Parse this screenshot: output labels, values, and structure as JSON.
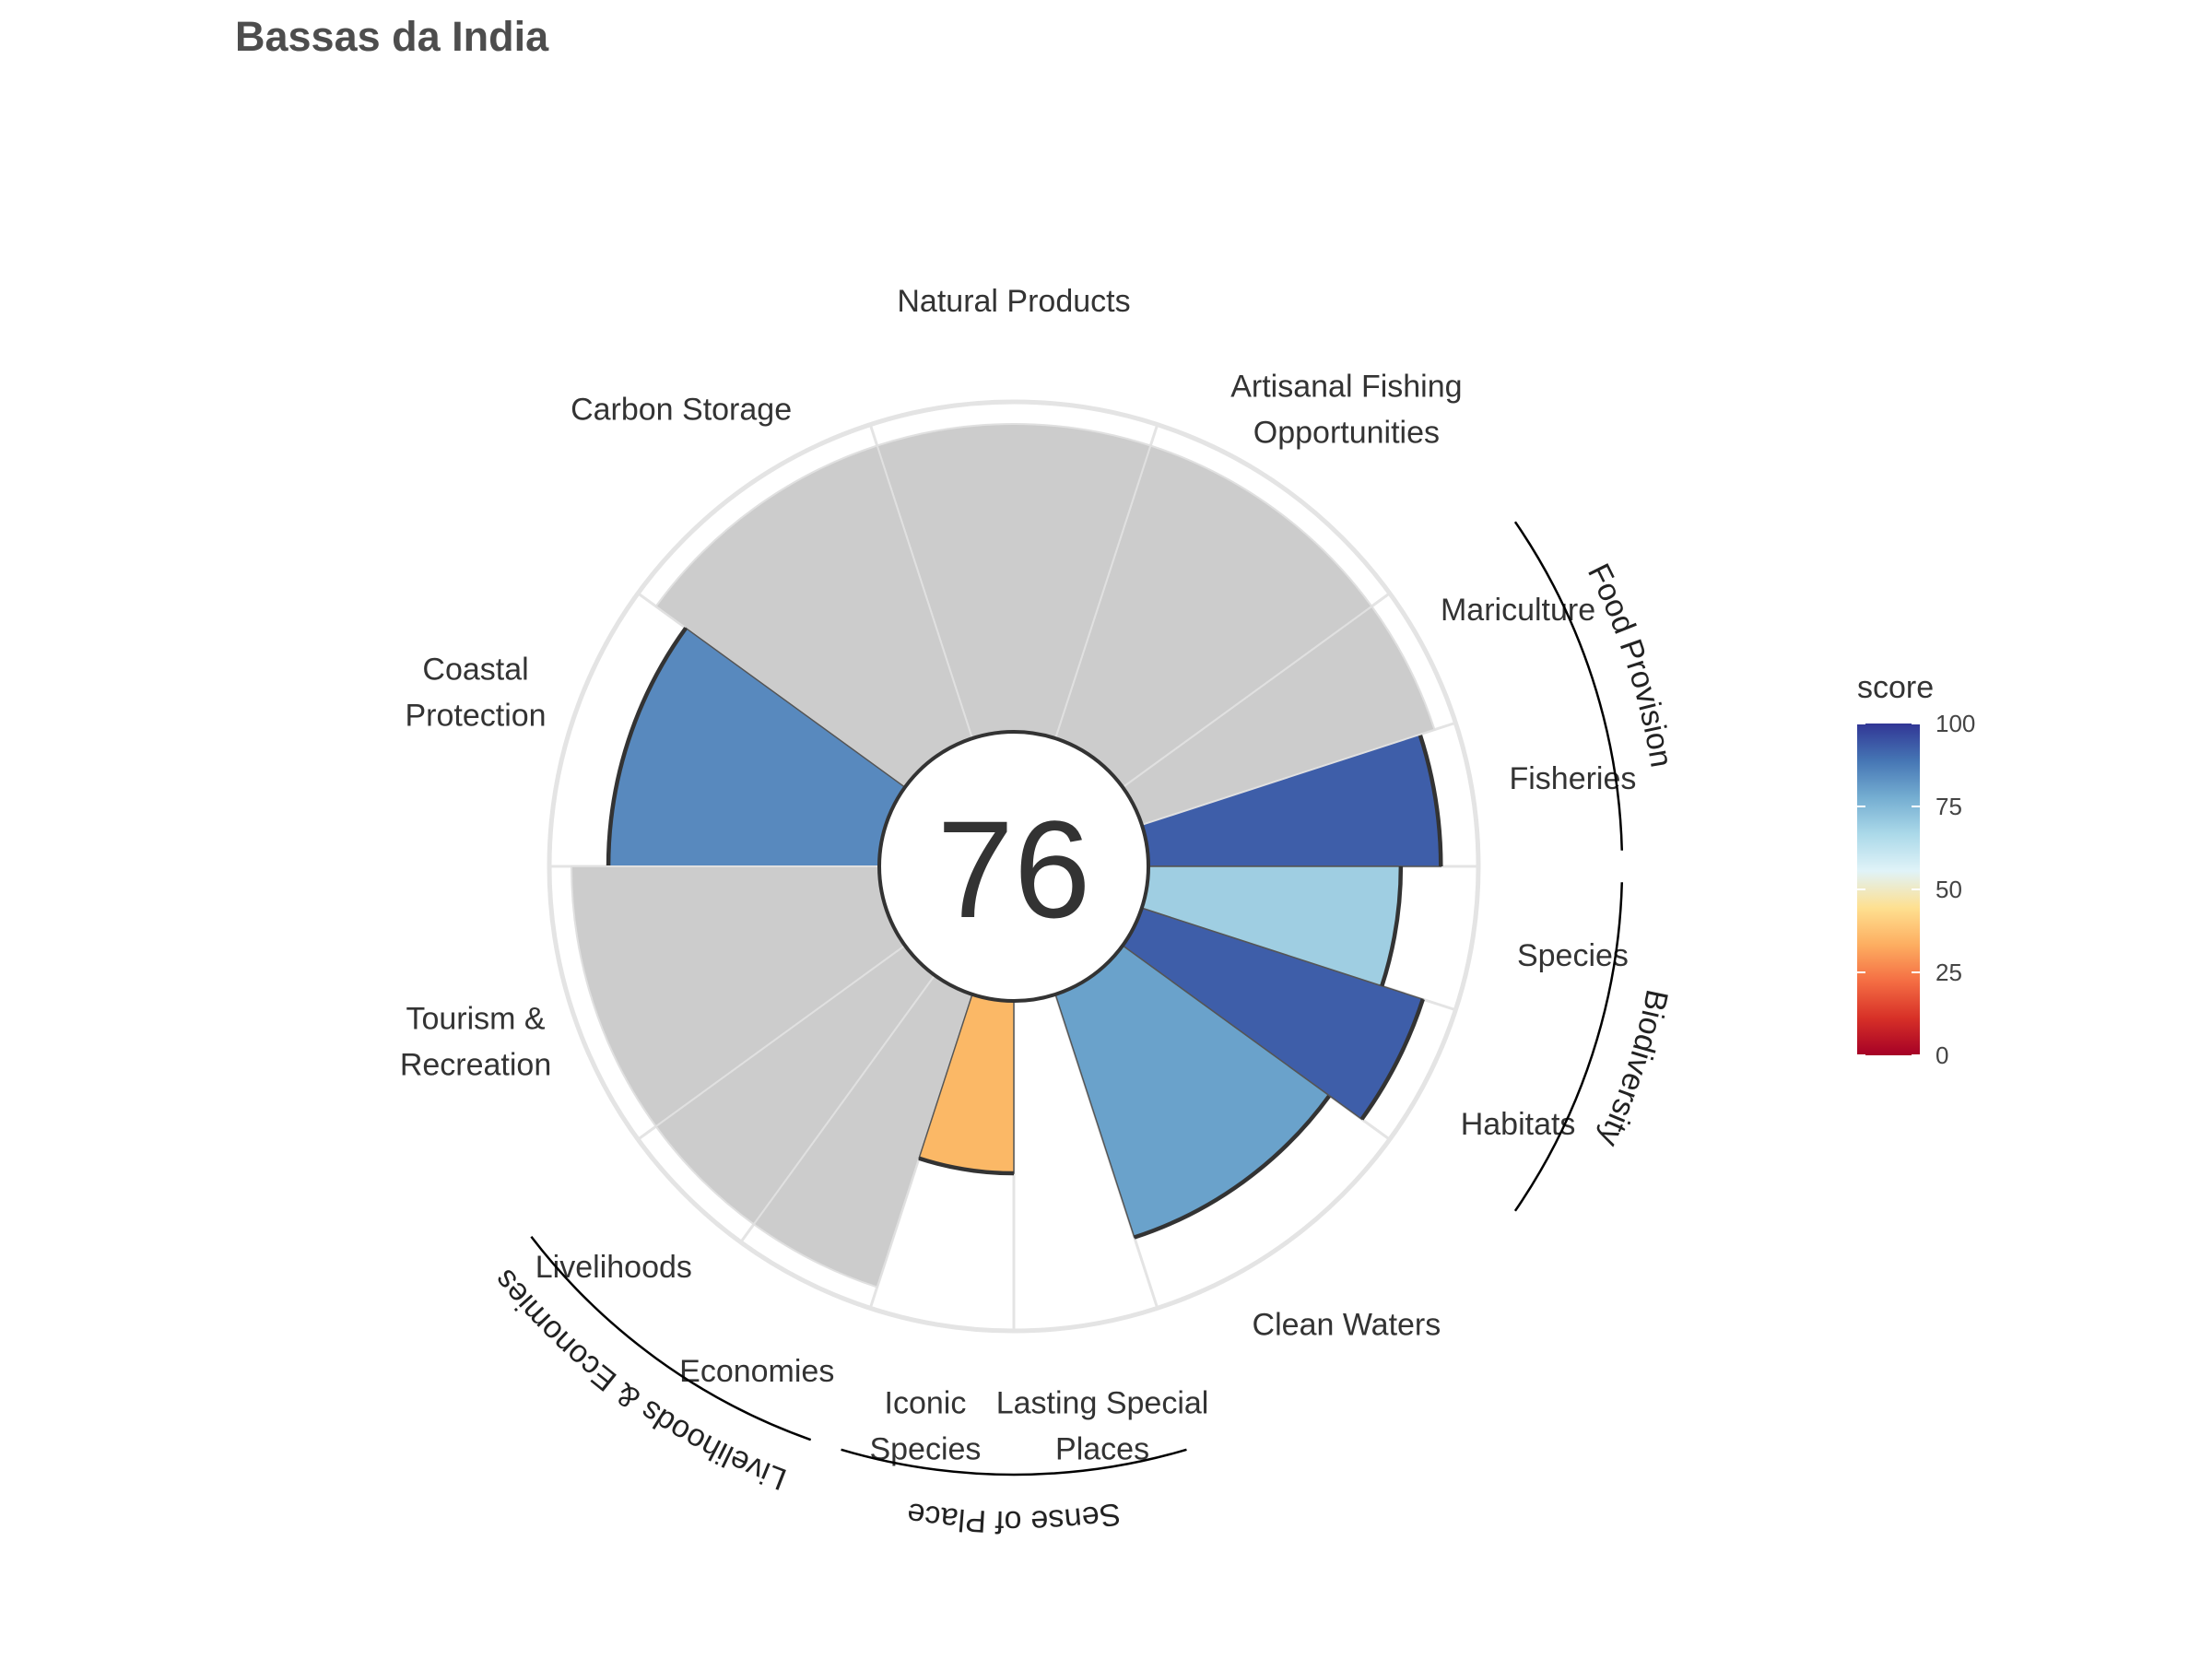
{
  "chart_data": {
    "type": "polar-bar",
    "title": "Bassas da India",
    "center_score": "76",
    "ylim": [
      0,
      100
    ],
    "petals": [
      {
        "id": "fisheries",
        "label": [
          "Fisheries"
        ],
        "score": 95,
        "weight": 1,
        "has_score": true,
        "color": "#3e5ea9"
      },
      {
        "id": "mariculture",
        "label": [
          "Mariculture"
        ],
        "score": null,
        "weight": 1,
        "has_score": false,
        "color": "#cccccc"
      },
      {
        "id": "artisanal-fishing",
        "label": [
          "Artisanal Fishing",
          "Opportunities"
        ],
        "score": null,
        "weight": 2,
        "has_score": false,
        "color": "#cccccc"
      },
      {
        "id": "natural-products",
        "label": [
          "Natural Products"
        ],
        "score": null,
        "weight": 2,
        "has_score": false,
        "color": "#cccccc"
      },
      {
        "id": "carbon-storage",
        "label": [
          "Carbon Storage"
        ],
        "score": null,
        "weight": 2,
        "has_score": false,
        "color": "#cccccc"
      },
      {
        "id": "coastal-protection",
        "label": [
          "Coastal",
          "Protection"
        ],
        "score": 88,
        "weight": 2,
        "has_score": true,
        "color": "#5889be"
      },
      {
        "id": "tourism-recreation",
        "label": [
          "Tourism &",
          "Recreation"
        ],
        "score": null,
        "weight": 2,
        "has_score": false,
        "color": "#cccccc"
      },
      {
        "id": "livelihoods",
        "label": [
          "Livelihoods"
        ],
        "score": null,
        "weight": 1,
        "has_score": false,
        "color": "#cccccc"
      },
      {
        "id": "economies",
        "label": [
          "Economies"
        ],
        "score": null,
        "weight": 1,
        "has_score": false,
        "color": "#cccccc"
      },
      {
        "id": "iconic-species",
        "label": [
          "Iconic",
          "Species"
        ],
        "score": 56,
        "weight": 1,
        "has_score": true,
        "color": "#fbb866"
      },
      {
        "id": "lasting-special-places",
        "label": [
          "Lasting Special",
          "Places"
        ],
        "score": 0,
        "weight": 1,
        "has_score": true,
        "color": "#ffffff"
      },
      {
        "id": "clean-waters",
        "label": [
          "Clean Waters"
        ],
        "score": 83,
        "weight": 2,
        "has_score": true,
        "color": "#6aa2cb"
      },
      {
        "id": "habitats",
        "label": [
          "Habitats"
        ],
        "score": 96,
        "weight": 1,
        "has_score": true,
        "color": "#3e5ea9"
      },
      {
        "id": "species",
        "label": [
          "Species"
        ],
        "score": 82,
        "weight": 1,
        "has_score": true,
        "color": "#9fcee2"
      }
    ],
    "groups": [
      {
        "label": "Food Provision",
        "from": "fisheries",
        "to": "mariculture"
      },
      {
        "label": "Livelihoods & Economies",
        "from": "livelihoods",
        "to": "economies"
      },
      {
        "label": "Sense of Place",
        "from": "iconic-species",
        "to": "lasting-special-places"
      },
      {
        "label": "Biodiversity",
        "from": "habitats",
        "to": "species"
      }
    ],
    "legend": {
      "title": "score",
      "placement": "right",
      "ticks": [
        "100",
        "75",
        "50",
        "25",
        "0"
      ],
      "gradient": [
        "#a50026",
        "#d73027",
        "#f46d43",
        "#fdae61",
        "#fee090",
        "#e0f3f8",
        "#abd9e9",
        "#74add1",
        "#4575b4",
        "#313695"
      ]
    }
  }
}
